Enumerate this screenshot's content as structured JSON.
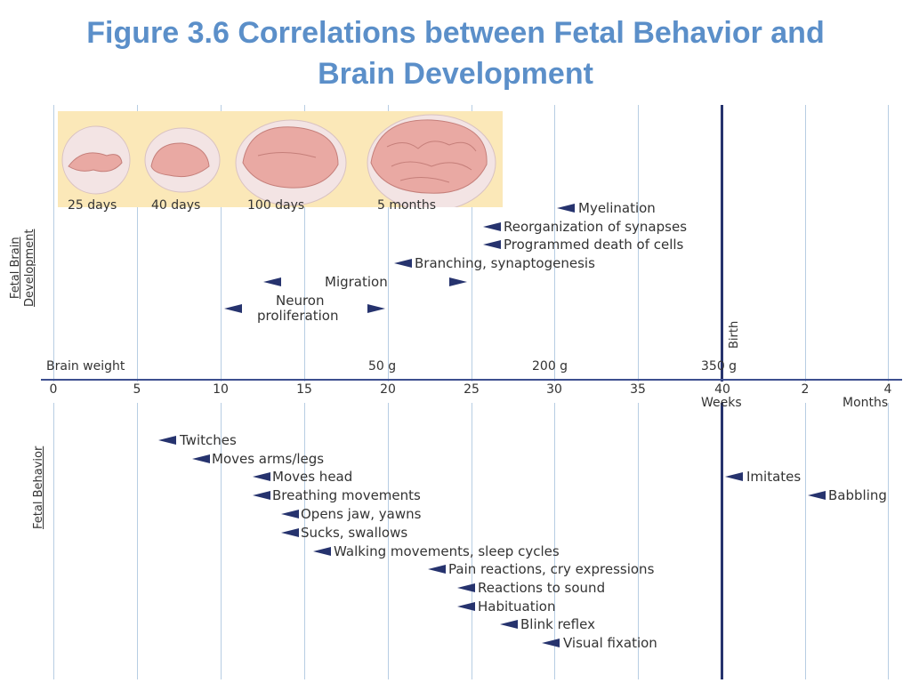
{
  "title": {
    "line1": "Figure 3.6 Correlations between Fetal Behavior and",
    "line2": "Brain Development"
  },
  "axis": {
    "weeks": [
      "0",
      "5",
      "10",
      "15",
      "20",
      "25",
      "30",
      "35",
      "40"
    ],
    "months": [
      "2",
      "4"
    ],
    "weeks_unit": "Weeks",
    "months_unit": "Months"
  },
  "brain_weight": {
    "label": "Brain weight",
    "values": [
      "50 g",
      "200 g",
      "350 g"
    ]
  },
  "birth_label": "Birth",
  "images": [
    "25 days",
    "40 days",
    "100 days",
    "5 months"
  ],
  "sections": {
    "brain_line1": "Fetal Brain",
    "brain_line2": "Development",
    "behavior": "Fetal Behavior"
  },
  "brain_events": {
    "myelination": "Myelination",
    "reorganization": "Reorganization of synapses",
    "programmed_death": "Programmed death of cells",
    "branching": "Branching, synaptogenesis",
    "migration": "Migration",
    "neuron_line1": "Neuron",
    "neuron_line2": "proliferation"
  },
  "behavior_events": {
    "twitches": "Twitches",
    "moves_arms": "Moves arms/legs",
    "moves_head": "Moves head",
    "breathing": "Breathing movements",
    "opens_jaw": "Opens jaw, yawns",
    "sucks": "Sucks, swallows",
    "walking": "Walking movements, sleep cycles",
    "pain": "Pain reactions, cry expressions",
    "sound": "Reactions to sound",
    "habituation": "Habituation",
    "blink": "Blink reflex",
    "visual": "Visual fixation",
    "imitates": "Imitates",
    "babbling": "Babbling"
  },
  "colors": {
    "title": "#5b8fc9",
    "arrow": "#26336e",
    "grid": "#b7cde3",
    "photo_background": "#fbe8b8",
    "brain": "#e9a9a3",
    "head": "#f3e4e4"
  }
}
